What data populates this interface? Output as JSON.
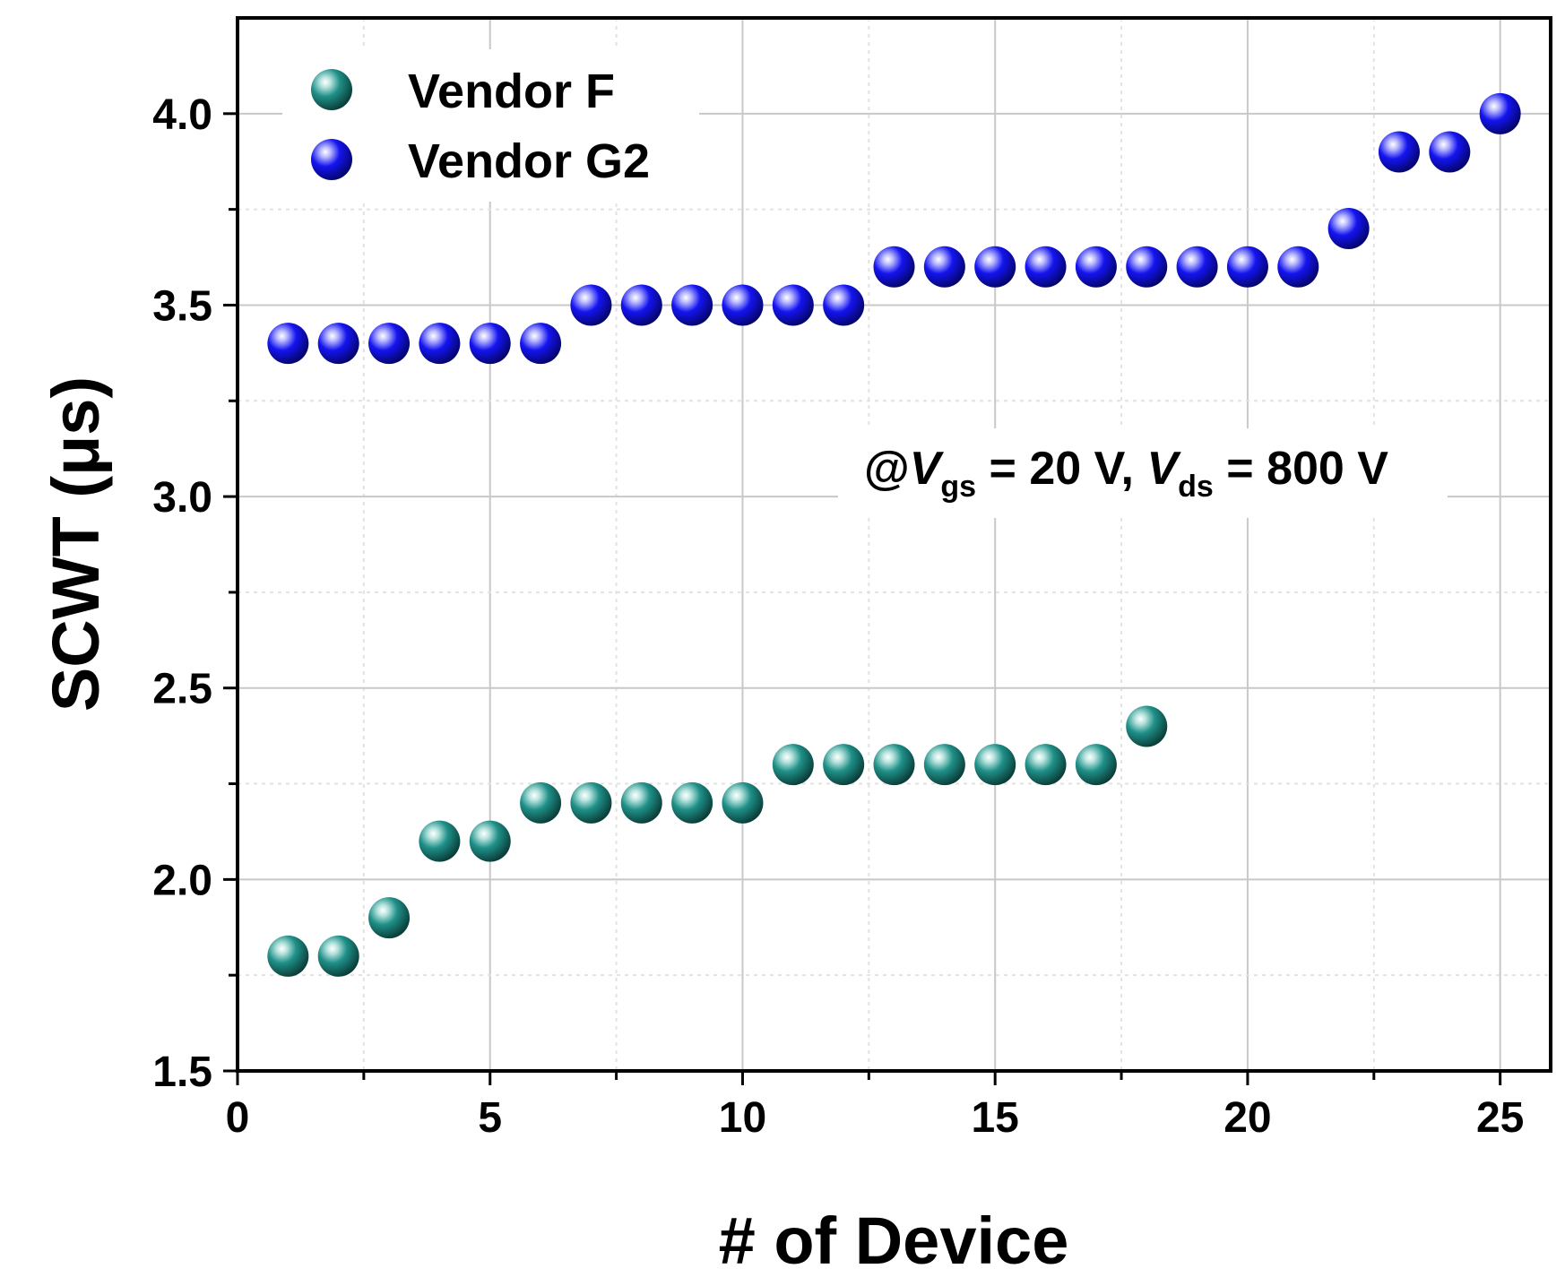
{
  "chart_data": {
    "type": "scatter",
    "title": "",
    "xlabel": "# of Device",
    "ylabel": "SCWT (μs)",
    "xlim": [
      0,
      26
    ],
    "ylim": [
      1.5,
      4.25
    ],
    "xticks": [
      "0",
      "5",
      "10",
      "15",
      "20",
      "25"
    ],
    "yticks": [
      "1.5",
      "2.0",
      "2.5",
      "3.0",
      "3.5",
      "4.0"
    ],
    "grid": true,
    "legend_position": "top-left",
    "series": [
      {
        "name": "Vendor F",
        "color": "#1a8a82",
        "x": [
          1,
          2,
          3,
          4,
          5,
          6,
          7,
          8,
          9,
          10,
          11,
          12,
          13,
          14,
          15,
          16,
          17,
          18
        ],
        "y": [
          1.8,
          1.8,
          1.9,
          2.1,
          2.1,
          2.2,
          2.2,
          2.2,
          2.2,
          2.2,
          2.3,
          2.3,
          2.3,
          2.3,
          2.3,
          2.3,
          2.3,
          2.4
        ]
      },
      {
        "name": "Vendor G2",
        "color": "#1010ee",
        "x": [
          1,
          2,
          3,
          4,
          5,
          6,
          7,
          8,
          9,
          10,
          11,
          12,
          13,
          14,
          15,
          16,
          17,
          18,
          19,
          20,
          21,
          22,
          23,
          24,
          25
        ],
        "y": [
          3.4,
          3.4,
          3.4,
          3.4,
          3.4,
          3.4,
          3.5,
          3.5,
          3.5,
          3.5,
          3.5,
          3.5,
          3.6,
          3.6,
          3.6,
          3.6,
          3.6,
          3.6,
          3.6,
          3.6,
          3.6,
          3.7,
          3.9,
          3.9,
          4.0
        ]
      }
    ],
    "annotation": {
      "prefix": "@",
      "v1": "V",
      "sub1": "gs",
      "mid": " = 20 V, ",
      "v2": "V",
      "sub2": "ds",
      "suffix": " = 800 V"
    }
  }
}
